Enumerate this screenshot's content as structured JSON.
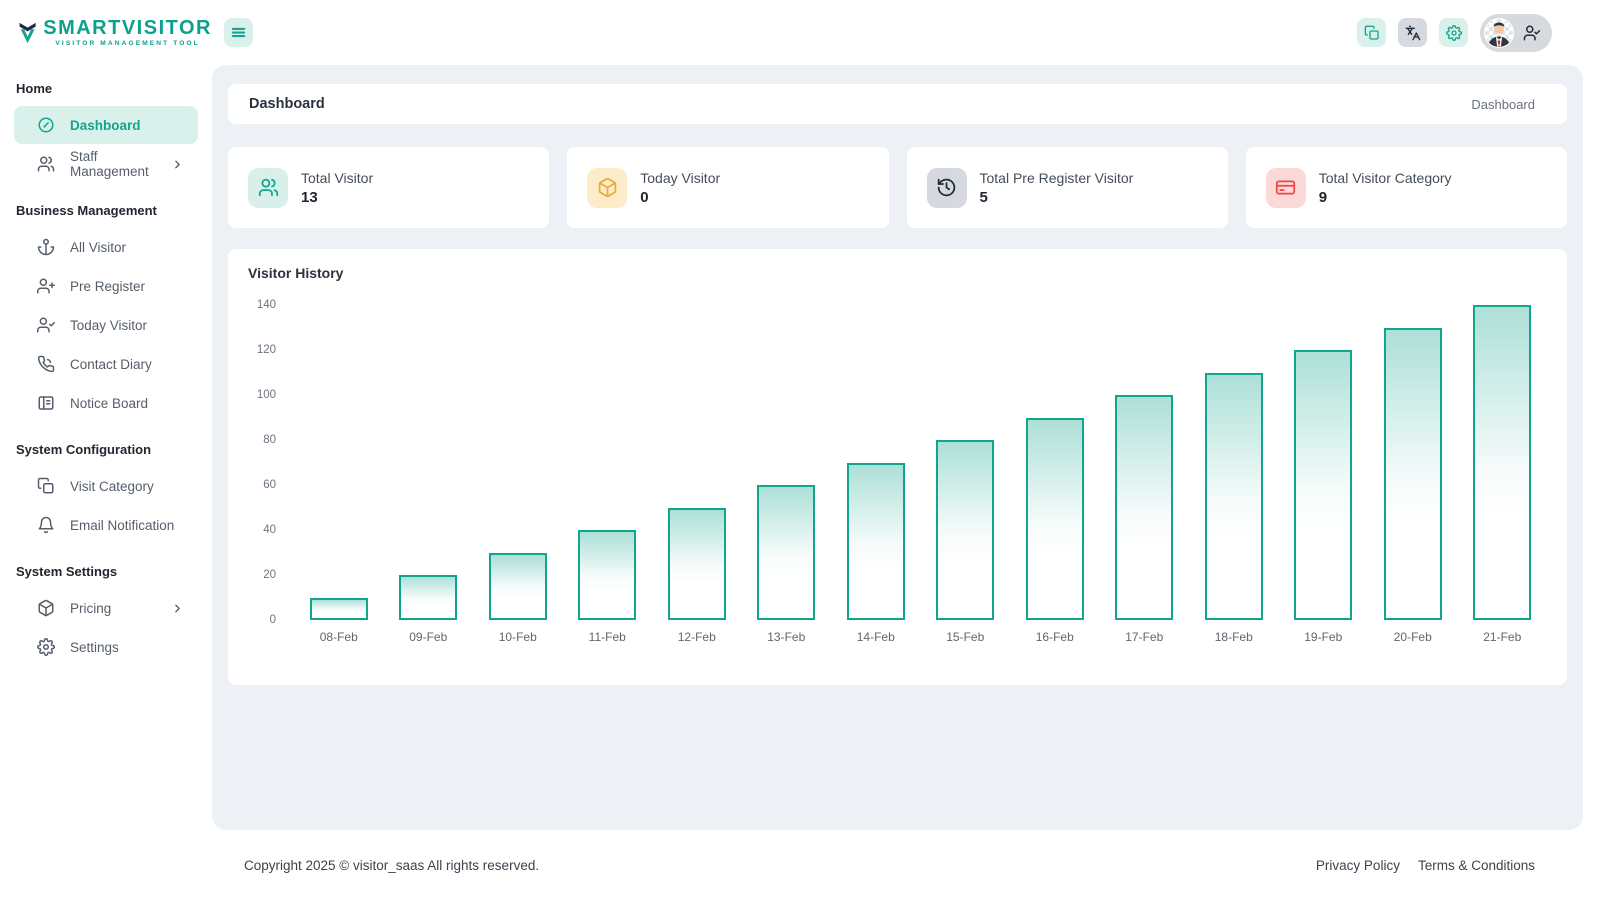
{
  "brand": {
    "name": "SMARTVISITOR",
    "tagline": "VISITOR MANAGEMENT TOOL"
  },
  "topbar": {
    "actions": [
      {
        "icon": "copy-icon"
      },
      {
        "icon": "translate-icon"
      },
      {
        "icon": "gear-icon"
      }
    ],
    "user": {
      "avatar": "man-in-suit",
      "icon": "user-check-icon"
    }
  },
  "page": {
    "title": "Dashboard",
    "breadcrumb": "Dashboard"
  },
  "sidebar": {
    "sections": [
      {
        "title": "Home",
        "items": [
          {
            "label": "Dashboard",
            "icon": "gauge-icon",
            "active": true
          },
          {
            "label": "Staff Management",
            "icon": "users-icon",
            "has_submenu": true
          }
        ]
      },
      {
        "title": "Business Management",
        "items": [
          {
            "label": "All Visitor",
            "icon": "anchor-icon"
          },
          {
            "label": "Pre Register",
            "icon": "user-plus-icon"
          },
          {
            "label": "Today Visitor",
            "icon": "user-check-icon"
          },
          {
            "label": "Contact Diary",
            "icon": "phone-icon"
          },
          {
            "label": "Notice Board",
            "icon": "board-icon"
          }
        ]
      },
      {
        "title": "System Configuration",
        "items": [
          {
            "label": "Visit Category",
            "icon": "copy-icon"
          },
          {
            "label": "Email Notification",
            "icon": "bell-icon"
          }
        ]
      },
      {
        "title": "System Settings",
        "items": [
          {
            "label": "Pricing",
            "icon": "package-icon",
            "has_submenu": true
          },
          {
            "label": "Settings",
            "icon": "gear-icon"
          }
        ]
      }
    ]
  },
  "stats": [
    {
      "label": "Total Visitor",
      "value": "13",
      "icon": "users-icon",
      "color": "#12a58e",
      "bg": "#d8f0e9"
    },
    {
      "label": "Today Visitor",
      "value": "0",
      "icon": "package-icon",
      "color": "#e9ab3a",
      "bg": "#fcecca"
    },
    {
      "label": "Total Pre Register Visitor",
      "value": "5",
      "icon": "clock-history-icon",
      "color": "#1d2b3a",
      "bg": "#d6dade"
    },
    {
      "label": "Total Visitor Category",
      "value": "9",
      "icon": "credit-card-icon",
      "color": "#ef4444",
      "bg": "#fbd9d9"
    }
  ],
  "chart_data": {
    "type": "bar",
    "title": "Visitor History",
    "categories": [
      "08-Feb",
      "09-Feb",
      "10-Feb",
      "11-Feb",
      "12-Feb",
      "13-Feb",
      "14-Feb",
      "15-Feb",
      "16-Feb",
      "17-Feb",
      "18-Feb",
      "19-Feb",
      "20-Feb",
      "21-Feb"
    ],
    "values": [
      10,
      20,
      30,
      40,
      50,
      60,
      70,
      80,
      90,
      100,
      110,
      120,
      130,
      140
    ],
    "xlabel": "",
    "ylabel": "",
    "ylim": [
      0,
      140
    ],
    "yticks": [
      0,
      20,
      40,
      60,
      80,
      100,
      120,
      140
    ],
    "bar_color": "#12a58e",
    "grid": false,
    "legend": false
  },
  "footer": {
    "copyright": "Copyright 2025 © visitor_saas All rights reserved.",
    "links": [
      "Privacy Policy",
      "Terms & Conditions"
    ]
  }
}
